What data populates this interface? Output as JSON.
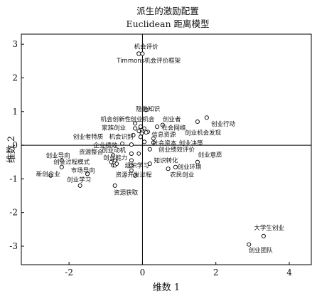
{
  "chart_data": {
    "type": "scatter",
    "title": "派生的激励配置",
    "subtitle": "Euclidean 距离模型",
    "xlabel": "维数 1",
    "ylabel": "维数 2",
    "xlim": [
      -3.3,
      4.6
    ],
    "ylim": [
      -3.55,
      3.3
    ],
    "xticks": [
      -2,
      0,
      2,
      4
    ],
    "yticks": [
      -3,
      -2,
      -1,
      0,
      1,
      2,
      3
    ],
    "grid": false,
    "points": [
      {
        "label": "机会评价",
        "x": -0.1,
        "y": 2.72,
        "lx": 0.1,
        "ly": 2.93
      },
      {
        "label": "",
        "x": 0.0,
        "y": 2.72,
        "lx": 0,
        "ly": 0
      },
      {
        "label": "Timmons机会评价框架",
        "x": -0.1,
        "y": 2.72,
        "lx": 0.17,
        "ly": 2.52
      },
      {
        "label": "隐性知识",
        "x": 0.1,
        "y": 1.05,
        "lx": 0.15,
        "ly": 1.08
      },
      {
        "label": "机会创新性",
        "x": -0.2,
        "y": 0.65,
        "lx": -0.73,
        "ly": 0.77
      },
      {
        "label": "创业机会",
        "x": -0.05,
        "y": 0.55,
        "lx": 0.0,
        "ly": 0.77
      },
      {
        "label": "创业者",
        "x": 0.55,
        "y": 0.6,
        "lx": 0.8,
        "ly": 0.77
      },
      {
        "label": "创业行动",
        "x": 1.75,
        "y": 0.82,
        "lx": 2.2,
        "ly": 0.64
      },
      {
        "label": "社会网络",
        "x": 0.4,
        "y": 0.55,
        "lx": 0.85,
        "ly": 0.52
      },
      {
        "label": "家族创业",
        "x": -0.2,
        "y": 0.5,
        "lx": -0.78,
        "ly": 0.52
      },
      {
        "label": "创业机会发现",
        "x": 1.5,
        "y": 0.7,
        "lx": 1.65,
        "ly": 0.37
      },
      {
        "label": "信息资源",
        "x": 0.1,
        "y": 0.38,
        "lx": 0.58,
        "ly": 0.32
      },
      {
        "label": "创业者特质",
        "x": -0.25,
        "y": 0.3,
        "lx": -1.48,
        "ly": 0.26
      },
      {
        "label": "机会识别",
        "x": -0.05,
        "y": 0.25,
        "lx": -0.58,
        "ly": 0.26
      },
      {
        "label": "社会资本",
        "x": 0.05,
        "y": 0.1,
        "lx": 0.6,
        "ly": 0.06
      },
      {
        "label": "创业决策",
        "x": 0.3,
        "y": 0.08,
        "lx": 1.32,
        "ly": 0.06
      },
      {
        "label": "企业绩效",
        "x": -0.3,
        "y": 0.02,
        "lx": -1.01,
        "ly": 0.0
      },
      {
        "label": "创业导向",
        "x": -2.2,
        "y": -0.45,
        "lx": -2.3,
        "ly": -0.3
      },
      {
        "label": "资源整合",
        "x": -0.8,
        "y": -0.3,
        "lx": -1.4,
        "ly": -0.2
      },
      {
        "label": "创业动机",
        "x": -0.3,
        "y": -0.25,
        "lx": -0.78,
        "ly": -0.15
      },
      {
        "label": "创业绩效评价",
        "x": 0.2,
        "y": -0.12,
        "lx": 0.93,
        "ly": -0.12
      },
      {
        "label": "创业能力",
        "x": -0.3,
        "y": -0.45,
        "lx": -0.74,
        "ly": -0.37
      },
      {
        "label": "知识转化",
        "x": 0.2,
        "y": -0.55,
        "lx": 0.64,
        "ly": -0.45
      },
      {
        "label": "创业过程模式",
        "x": -2.2,
        "y": -0.65,
        "lx": -1.93,
        "ly": -0.5
      },
      {
        "label": "创业意愿",
        "x": 1.5,
        "y": -0.5,
        "lx": 1.84,
        "ly": -0.28
      },
      {
        "label": "组织学习",
        "x": -0.3,
        "y": -0.6,
        "lx": -0.15,
        "ly": -0.6
      },
      {
        "label": "创业环境",
        "x": 0.9,
        "y": -0.65,
        "lx": 1.28,
        "ly": -0.64
      },
      {
        "label": "新创企业",
        "x": -2.5,
        "y": -0.9,
        "lx": -2.57,
        "ly": -0.85
      },
      {
        "label": "市场导向",
        "x": -1.5,
        "y": -0.85,
        "lx": -1.62,
        "ly": -0.75
      },
      {
        "label": "资源开发过程",
        "x": -0.2,
        "y": -0.9,
        "lx": -0.24,
        "ly": -0.88
      },
      {
        "label": "农民创业",
        "x": 0.7,
        "y": -0.7,
        "lx": 1.08,
        "ly": -0.88
      },
      {
        "label": "创业学习",
        "x": -1.7,
        "y": -1.2,
        "lx": -1.73,
        "ly": -1.02
      },
      {
        "label": "资源获取",
        "x": -0.75,
        "y": -1.2,
        "lx": -0.45,
        "ly": -1.4
      },
      {
        "label": "大学生创业",
        "x": 3.3,
        "y": -2.7,
        "lx": 3.45,
        "ly": -2.45
      },
      {
        "label": "创业团队",
        "x": 2.9,
        "y": -2.95,
        "lx": 3.22,
        "ly": -3.12
      }
    ],
    "cluster_points": [
      {
        "x": -0.05,
        "y": 0.5
      },
      {
        "x": 0.05,
        "y": 0.5
      },
      {
        "x": -0.02,
        "y": 0.45
      },
      {
        "x": 0.0,
        "y": 0.4
      },
      {
        "x": -0.02,
        "y": 0.35
      },
      {
        "x": 0.15,
        "y": 0.4
      },
      {
        "x": -0.1,
        "y": 0.42
      },
      {
        "x": 0.3,
        "y": 0.2
      },
      {
        "x": -0.55,
        "y": 0.05
      },
      {
        "x": -0.75,
        "y": -0.45
      },
      {
        "x": -0.85,
        "y": -0.5
      },
      {
        "x": -0.8,
        "y": -0.6
      },
      {
        "x": -0.75,
        "y": -0.6
      },
      {
        "x": -0.7,
        "y": -0.55
      },
      {
        "x": -0.1,
        "y": -0.25
      },
      {
        "x": -0.3,
        "y": -0.75
      }
    ]
  }
}
